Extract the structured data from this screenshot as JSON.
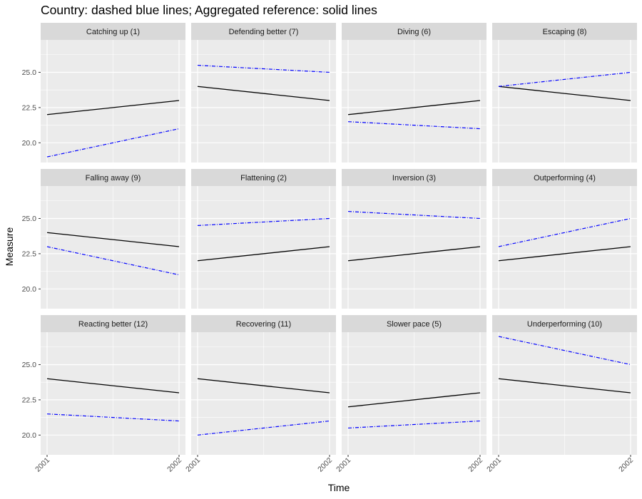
{
  "chart_data": {
    "type": "line",
    "title": "Country: dashed blue lines;  Aggregated reference: solid lines",
    "xlabel": "Time",
    "ylabel": "Measure",
    "x": [
      "2001",
      "2002"
    ],
    "ylim": [
      18.6,
      27.3
    ],
    "y_ticks": [
      20.0,
      22.5,
      25.0
    ],
    "y_tick_labels": [
      "20.0",
      "22.5",
      "25.0"
    ],
    "grid": true,
    "facet_layout": "3 rows x 4 columns, shared axes",
    "colors": {
      "country": "#0000ff",
      "reference": "#000000",
      "panel_bg": "#ebebeb",
      "strip_bg": "#d9d9d9",
      "grid": "#ffffff"
    },
    "panels": [
      {
        "label": "Catching up (1)",
        "country": [
          19.0,
          21.0
        ],
        "reference": [
          22.0,
          23.0
        ]
      },
      {
        "label": "Defending better (7)",
        "country": [
          25.5,
          25.0
        ],
        "reference": [
          24.0,
          23.0
        ]
      },
      {
        "label": "Diving (6)",
        "country": [
          21.5,
          21.0
        ],
        "reference": [
          22.0,
          23.0
        ]
      },
      {
        "label": "Escaping (8)",
        "country": [
          24.0,
          25.0
        ],
        "reference": [
          24.0,
          23.0
        ]
      },
      {
        "label": "Falling away (9)",
        "country": [
          23.0,
          21.0
        ],
        "reference": [
          24.0,
          23.0
        ]
      },
      {
        "label": "Flattening (2)",
        "country": [
          24.5,
          25.0
        ],
        "reference": [
          22.0,
          23.0
        ]
      },
      {
        "label": "Inversion (3)",
        "country": [
          25.5,
          25.0
        ],
        "reference": [
          22.0,
          23.0
        ]
      },
      {
        "label": "Outperforming (4)",
        "country": [
          23.0,
          25.0
        ],
        "reference": [
          22.0,
          23.0
        ]
      },
      {
        "label": "Reacting better (12)",
        "country": [
          21.5,
          21.0
        ],
        "reference": [
          24.0,
          23.0
        ]
      },
      {
        "label": "Recovering (11)",
        "country": [
          20.0,
          21.0
        ],
        "reference": [
          24.0,
          23.0
        ]
      },
      {
        "label": "Slower pace (5)",
        "country": [
          20.5,
          21.0
        ],
        "reference": [
          22.0,
          23.0
        ]
      },
      {
        "label": "Underperforming (10)",
        "country": [
          27.0,
          25.0
        ],
        "reference": [
          24.0,
          23.0
        ]
      }
    ]
  }
}
